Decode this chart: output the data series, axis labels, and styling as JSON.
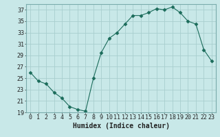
{
  "x": [
    0,
    1,
    2,
    3,
    4,
    5,
    6,
    7,
    8,
    9,
    10,
    11,
    12,
    13,
    14,
    15,
    16,
    17,
    18,
    19,
    20,
    21,
    22,
    23
  ],
  "y": [
    26,
    24.5,
    24,
    22.5,
    21.5,
    20,
    19.5,
    19.2,
    25,
    29.5,
    32,
    33,
    34.5,
    36,
    36,
    36.5,
    37.2,
    37,
    37.5,
    36.5,
    35,
    34.5,
    30,
    28
  ],
  "line_color": "#1a6b5a",
  "marker": "D",
  "marker_size": 2.5,
  "bg_color": "#c8e8e8",
  "grid_color": "#a8cece",
  "xlabel": "Humidex (Indice chaleur)",
  "xlabel_fontsize": 7,
  "tick_fontsize": 6,
  "ylim": [
    19,
    38
  ],
  "xlim": [
    -0.5,
    23.5
  ],
  "yticks": [
    19,
    21,
    23,
    25,
    27,
    29,
    31,
    33,
    35,
    37
  ],
  "xticks": [
    0,
    1,
    2,
    3,
    4,
    5,
    6,
    7,
    8,
    9,
    10,
    11,
    12,
    13,
    14,
    15,
    16,
    17,
    18,
    19,
    20,
    21,
    22,
    23
  ]
}
